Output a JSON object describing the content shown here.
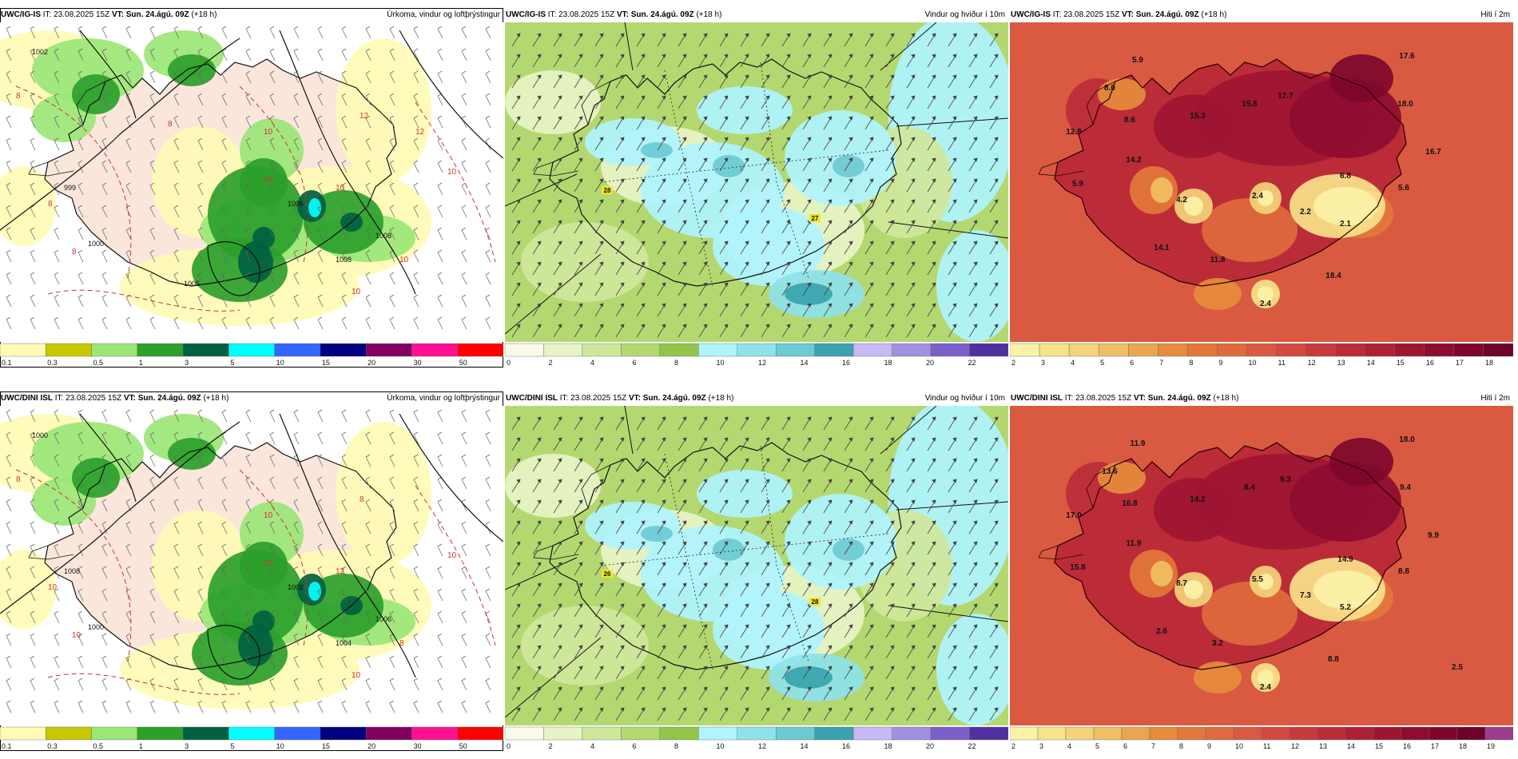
{
  "panels": [
    {
      "id": "p1",
      "model": "UWC/IG-IS",
      "it_label": "IT:",
      "it": "23.08.2025 15Z",
      "vt_label": "VT:",
      "vt": "Sun. 24.ágú. 09Z",
      "lead": "(+18 h)",
      "field": "Úrkoma, vindur og loftþrýstingur",
      "type": "precip",
      "scale_labels": [
        "0.1",
        "0.3",
        "0.5",
        "1",
        "3",
        "5",
        "10",
        "15",
        "20",
        "30",
        "50"
      ],
      "scale_colors": [
        "#fffbb5",
        "#c8c800",
        "#9be676",
        "#2ba02a",
        "#006040",
        "#00ffff",
        "#3366ff",
        "#000080",
        "#800060",
        "#ff1090",
        "#ff0000"
      ],
      "pressure_labels": [
        "1002",
        "1006",
        "1008",
        "1008",
        "999",
        "1000",
        "1006"
      ],
      "temp_labels": [
        "8",
        "10",
        "12",
        "8",
        "10",
        "8",
        "10",
        "10",
        "10",
        "10",
        "12",
        "8"
      ]
    },
    {
      "id": "p2",
      "model": "UWC/IG-IS",
      "it_label": "IT:",
      "it": "23.08.2025 15Z",
      "vt_label": "VT:",
      "vt": "Sun. 24.ágú. 09Z",
      "lead": "(+18 h)",
      "field": "Vindur og hviður í 10m",
      "type": "wind",
      "scale_labels": [
        "0",
        "2",
        "4",
        "6",
        "8",
        "10",
        "12",
        "14",
        "16",
        "18",
        "20",
        "22"
      ],
      "scale_colors": [
        "#fafaea",
        "#e8f4c6",
        "#cfe79a",
        "#b4d870",
        "#93c54b",
        "#aff4ff",
        "#8fe2ea",
        "#6ccad3",
        "#3aa3ad",
        "#c8b8f4",
        "#a090e0",
        "#7a60c8",
        "#5030a0"
      ],
      "gust_labels": [
        "28",
        "27"
      ]
    },
    {
      "id": "p3",
      "model": "UWC/IG-IS",
      "it_label": "IT:",
      "it": "23.08.2025 15Z",
      "vt_label": "VT:",
      "vt": "Sun. 24.ágú. 09Z",
      "lead": "(+18 h)",
      "field": "Hiti í 2m",
      "type": "temp",
      "scale_labels": [
        "2",
        "3",
        "4",
        "5",
        "6",
        "7",
        "8",
        "9",
        "10",
        "11",
        "12",
        "13",
        "14",
        "15",
        "16",
        "17",
        "18"
      ],
      "scale_colors": [
        "#fbf2a6",
        "#f8e38a",
        "#f4d37a",
        "#efbf63",
        "#eaa64e",
        "#e68c3c",
        "#e3783a",
        "#de6a3d",
        "#d95a40",
        "#d24a40",
        "#c83a3c",
        "#bc2c38",
        "#ae2035",
        "#9e1532",
        "#8e0c30",
        "#7e062d",
        "#6d022a"
      ],
      "temps": [
        "5.9",
        "8.0",
        "8.6",
        "12.8",
        "14.2",
        "5.9",
        "15.3",
        "15.8",
        "17.7",
        "17.6",
        "18.0",
        "16.7",
        "6.8",
        "5.6",
        "4.2",
        "2.4",
        "2.2",
        "2.1",
        "14.1",
        "11.8",
        "18.4",
        "2.4"
      ]
    },
    {
      "id": "p4",
      "model": "UWC/DINI ISL",
      "it_label": "IT:",
      "it": "23.08.2025 15Z",
      "vt_label": "VT:",
      "vt": "Sun. 24.ágú. 09Z",
      "lead": "(+18 h)",
      "field": "Úrkoma, vindur og loftþrýstingur",
      "type": "precip",
      "scale_labels": [
        "0.1",
        "0.3",
        "0.5",
        "1",
        "3",
        "5",
        "10",
        "15",
        "20",
        "30",
        "50"
      ],
      "scale_colors": [
        "#fffbb5",
        "#c8c800",
        "#9be676",
        "#2ba02a",
        "#006040",
        "#00ffff",
        "#3366ff",
        "#000080",
        "#800060",
        "#ff1090",
        "#ff0000"
      ],
      "pressure_labels": [
        "1000",
        "1002",
        "1004",
        "1006",
        "1008",
        "1000"
      ],
      "temp_labels": [
        "8",
        "10",
        "8",
        "10",
        "12",
        "10",
        "10",
        "8",
        "10",
        "10"
      ]
    },
    {
      "id": "p5",
      "model": "UWC/DINI ISL",
      "it_label": "IT:",
      "it": "23.08.2025 15Z",
      "vt_label": "VT:",
      "vt": "Sun. 24.ágú. 09Z",
      "lead": "(+18 h)",
      "field": "Vindur og hviður í 10m",
      "type": "wind",
      "scale_labels": [
        "0",
        "2",
        "4",
        "6",
        "8",
        "10",
        "12",
        "14",
        "16",
        "18",
        "20",
        "22"
      ],
      "scale_colors": [
        "#fafaea",
        "#e8f4c6",
        "#cfe79a",
        "#b4d870",
        "#93c54b",
        "#aff4ff",
        "#8fe2ea",
        "#6ccad3",
        "#3aa3ad",
        "#c8b8f4",
        "#a090e0",
        "#7a60c8",
        "#5030a0"
      ],
      "gust_labels": [
        "26",
        "28"
      ]
    },
    {
      "id": "p6",
      "model": "UWC/DINI ISL",
      "it_label": "IT:",
      "it": "23.08.2025 15Z",
      "vt_label": "VT:",
      "vt": "Sun. 24.ágú. 09Z",
      "lead": "(+18 h)",
      "field": "Hiti í 2m",
      "type": "temp",
      "scale_labels": [
        "2",
        "3",
        "4",
        "5",
        "6",
        "7",
        "8",
        "9",
        "10",
        "11",
        "12",
        "13",
        "14",
        "15",
        "16",
        "17",
        "18",
        "19"
      ],
      "scale_colors": [
        "#fbf2a6",
        "#f8e38a",
        "#f4d37a",
        "#efbf63",
        "#eaa64e",
        "#e68c3c",
        "#e3783a",
        "#de6a3d",
        "#d95a40",
        "#d24a40",
        "#c83a3c",
        "#bc2c38",
        "#ae2035",
        "#9e1532",
        "#8e0c30",
        "#7e062d",
        "#6d022a",
        "#9c3d8e"
      ],
      "temps": [
        "11.9",
        "13.6",
        "16.8",
        "17.0",
        "11.9",
        "15.8",
        "14.2",
        "8.4",
        "9.3",
        "18.0",
        "9.4",
        "9.9",
        "14.9",
        "8.8",
        "8.7",
        "5.5",
        "7.3",
        "5.2",
        "2.6",
        "3.2",
        "8.8",
        "2.4",
        "2.5"
      ]
    }
  ]
}
